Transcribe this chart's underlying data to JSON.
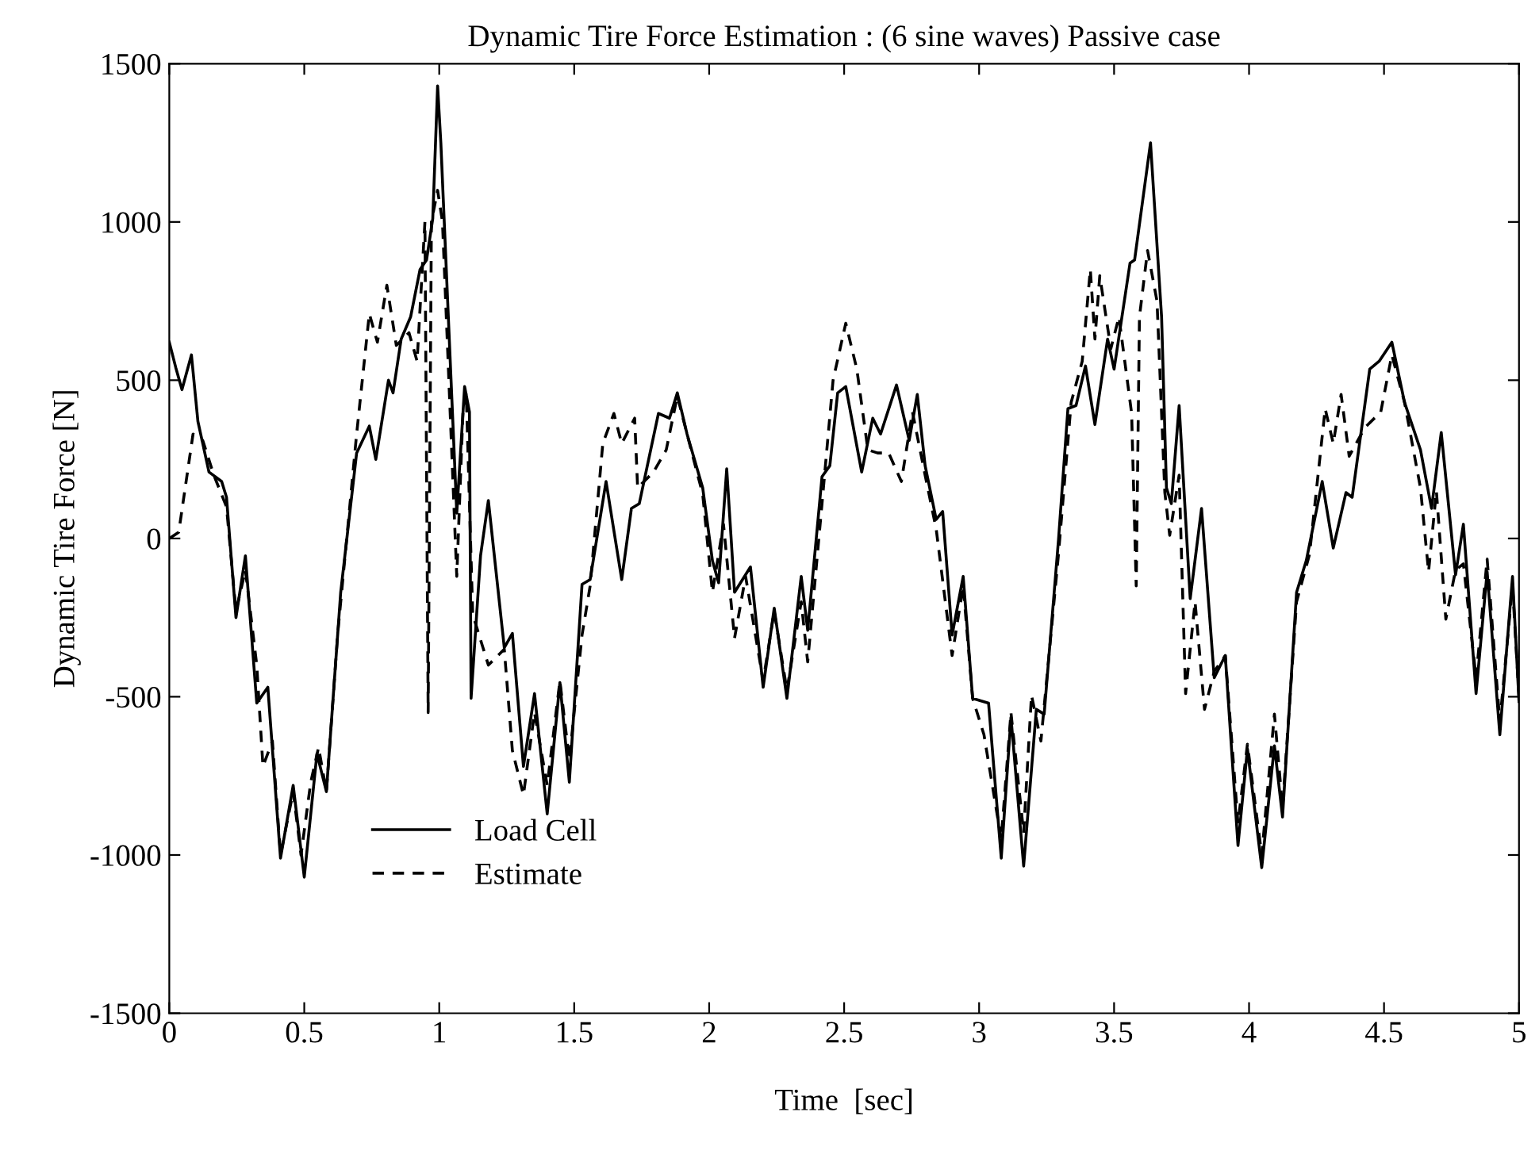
{
  "chart_data": {
    "type": "line",
    "title": "Dynamic Tire Force Estimation : (6 sine waves) Passive case",
    "xlabel": "Time  [sec]",
    "ylabel": "Dynamic Tire Force [N]",
    "xlim": [
      0,
      5
    ],
    "ylim": [
      -1500,
      1500
    ],
    "xticks": [
      0,
      0.5,
      1,
      1.5,
      2,
      2.5,
      3,
      3.5,
      4,
      4.5,
      5
    ],
    "yticks": [
      -1500,
      -1000,
      -500,
      0,
      500,
      1000,
      1500
    ],
    "grid": false,
    "legend": "bottom left",
    "series": [
      {
        "name": "Load Cell",
        "color": "#000000",
        "line_style": "solid",
        "x": [
          0,
          0.024,
          0.047,
          0.082,
          0.106,
          0.147,
          0.194,
          0.212,
          0.247,
          0.282,
          0.324,
          0.365,
          0.412,
          0.459,
          0.5,
          0.547,
          0.582,
          0.635,
          0.694,
          0.741,
          0.765,
          0.812,
          0.829,
          0.859,
          0.894,
          0.929,
          0.953,
          0.976,
          0.994,
          1.006,
          1.065,
          1.094,
          1.112,
          1.118,
          1.153,
          1.182,
          1.241,
          1.271,
          1.312,
          1.353,
          1.4,
          1.447,
          1.482,
          1.529,
          1.559,
          1.618,
          1.676,
          1.712,
          1.741,
          1.812,
          1.853,
          1.882,
          1.918,
          1.976,
          2.012,
          2.035,
          2.065,
          2.094,
          2.153,
          2.2,
          2.241,
          2.288,
          2.341,
          2.365,
          2.418,
          2.447,
          2.476,
          2.506,
          2.565,
          2.606,
          2.635,
          2.694,
          2.741,
          2.771,
          2.8,
          2.841,
          2.865,
          2.9,
          2.941,
          2.976,
          3.035,
          3.082,
          3.118,
          3.165,
          3.212,
          3.241,
          3.294,
          3.329,
          3.359,
          3.394,
          3.429,
          3.476,
          3.5,
          3.559,
          3.576,
          3.635,
          3.676,
          3.694,
          3.712,
          3.741,
          3.782,
          3.824,
          3.871,
          3.912,
          3.959,
          3.994,
          4.047,
          4.094,
          4.124,
          4.176,
          4.212,
          4.271,
          4.312,
          4.359,
          4.382,
          4.447,
          4.482,
          4.529,
          4.576,
          4.635,
          4.676,
          4.712,
          4.765,
          4.794,
          4.841,
          4.882,
          4.929,
          4.976,
          5.0
        ],
        "values": [
          620,
          540,
          470,
          580,
          370,
          210,
          180,
          130,
          -250,
          -55,
          -520,
          -470,
          -1010,
          -780,
          -1070,
          -680,
          -800,
          -170,
          270,
          355,
          250,
          500,
          460,
          630,
          700,
          850,
          880,
          1010,
          1430,
          1250,
          80,
          480,
          400,
          -505,
          -55,
          120,
          -345,
          -300,
          -720,
          -490,
          -870,
          -455,
          -770,
          -145,
          -130,
          180,
          -130,
          95,
          110,
          395,
          380,
          460,
          330,
          160,
          -70,
          -140,
          220,
          -170,
          -90,
          -470,
          -220,
          -505,
          -120,
          -290,
          195,
          230,
          460,
          480,
          210,
          380,
          330,
          485,
          310,
          455,
          230,
          60,
          85,
          -305,
          -120,
          -505,
          -520,
          -1010,
          -565,
          -1035,
          -540,
          -555,
          -5,
          410,
          420,
          545,
          360,
          630,
          535,
          870,
          880,
          1250,
          700,
          160,
          110,
          420,
          -190,
          95,
          -440,
          -370,
          -970,
          -665,
          -1040,
          -655,
          -880,
          -170,
          -70,
          180,
          -30,
          145,
          130,
          535,
          560,
          620,
          430,
          280,
          95,
          335,
          -115,
          45,
          -490,
          -105,
          -620,
          -120,
          -515
        ]
      },
      {
        "name": "Estimate",
        "color": "#000000",
        "line_style": "dashed",
        "x": [
          0,
          0.035,
          0.088,
          0.124,
          0.165,
          0.212,
          0.247,
          0.282,
          0.324,
          0.347,
          0.382,
          0.412,
          0.459,
          0.488,
          0.524,
          0.553,
          0.582,
          0.624,
          0.694,
          0.741,
          0.771,
          0.806,
          0.841,
          0.888,
          0.918,
          0.947,
          0.959,
          0.971,
          0.994,
          1.012,
          1.065,
          1.088,
          1.1,
          1.124,
          1.182,
          1.241,
          1.271,
          1.312,
          1.353,
          1.4,
          1.447,
          1.482,
          1.529,
          1.559,
          1.606,
          1.647,
          1.676,
          1.712,
          1.724,
          1.735,
          1.794,
          1.841,
          1.882,
          1.918,
          1.976,
          2.012,
          2.053,
          2.094,
          2.135,
          2.2,
          2.241,
          2.288,
          2.341,
          2.365,
          2.418,
          2.459,
          2.506,
          2.547,
          2.588,
          2.624,
          2.665,
          2.712,
          2.753,
          2.8,
          2.841,
          2.9,
          2.941,
          2.976,
          3.018,
          3.082,
          3.118,
          3.165,
          3.194,
          3.229,
          3.294,
          3.341,
          3.382,
          3.412,
          3.429,
          3.447,
          3.488,
          3.518,
          3.565,
          3.582,
          3.594,
          3.624,
          3.659,
          3.688,
          3.706,
          3.741,
          3.765,
          3.8,
          3.835,
          3.871,
          3.912,
          3.959,
          3.994,
          4.047,
          4.094,
          4.124,
          4.176,
          4.224,
          4.282,
          4.312,
          4.341,
          4.371,
          4.429,
          4.488,
          4.529,
          4.576,
          4.635,
          4.665,
          4.694,
          4.729,
          4.765,
          4.794,
          4.841,
          4.882,
          4.929,
          4.976,
          5.0
        ],
        "values": [
          0,
          20,
          330,
          310,
          200,
          100,
          -230,
          -100,
          -400,
          -720,
          -640,
          -1000,
          -800,
          -1000,
          -770,
          -660,
          -800,
          -300,
          330,
          710,
          620,
          800,
          610,
          650,
          560,
          1000,
          -550,
          1000,
          1100,
          1000,
          -120,
          400,
          460,
          -240,
          -400,
          -350,
          -670,
          -810,
          -550,
          -780,
          -450,
          -700,
          -305,
          -150,
          300,
          395,
          300,
          360,
          380,
          160,
          210,
          280,
          450,
          330,
          140,
          -170,
          45,
          -315,
          -120,
          -450,
          -230,
          -480,
          -200,
          -390,
          110,
          500,
          680,
          535,
          280,
          270,
          270,
          180,
          400,
          200,
          30,
          -370,
          -150,
          -505,
          -620,
          -950,
          -550,
          -930,
          -495,
          -640,
          -50,
          430,
          560,
          850,
          630,
          830,
          600,
          700,
          395,
          -150,
          700,
          910,
          750,
          145,
          10,
          200,
          -490,
          -200,
          -540,
          -420,
          -370,
          -900,
          -650,
          -1000,
          -555,
          -850,
          -200,
          -50,
          410,
          300,
          455,
          260,
          350,
          400,
          580,
          430,
          160,
          -105,
          150,
          -255,
          -100,
          -80,
          -440,
          -65,
          -580,
          -150,
          -500
        ]
      }
    ]
  }
}
